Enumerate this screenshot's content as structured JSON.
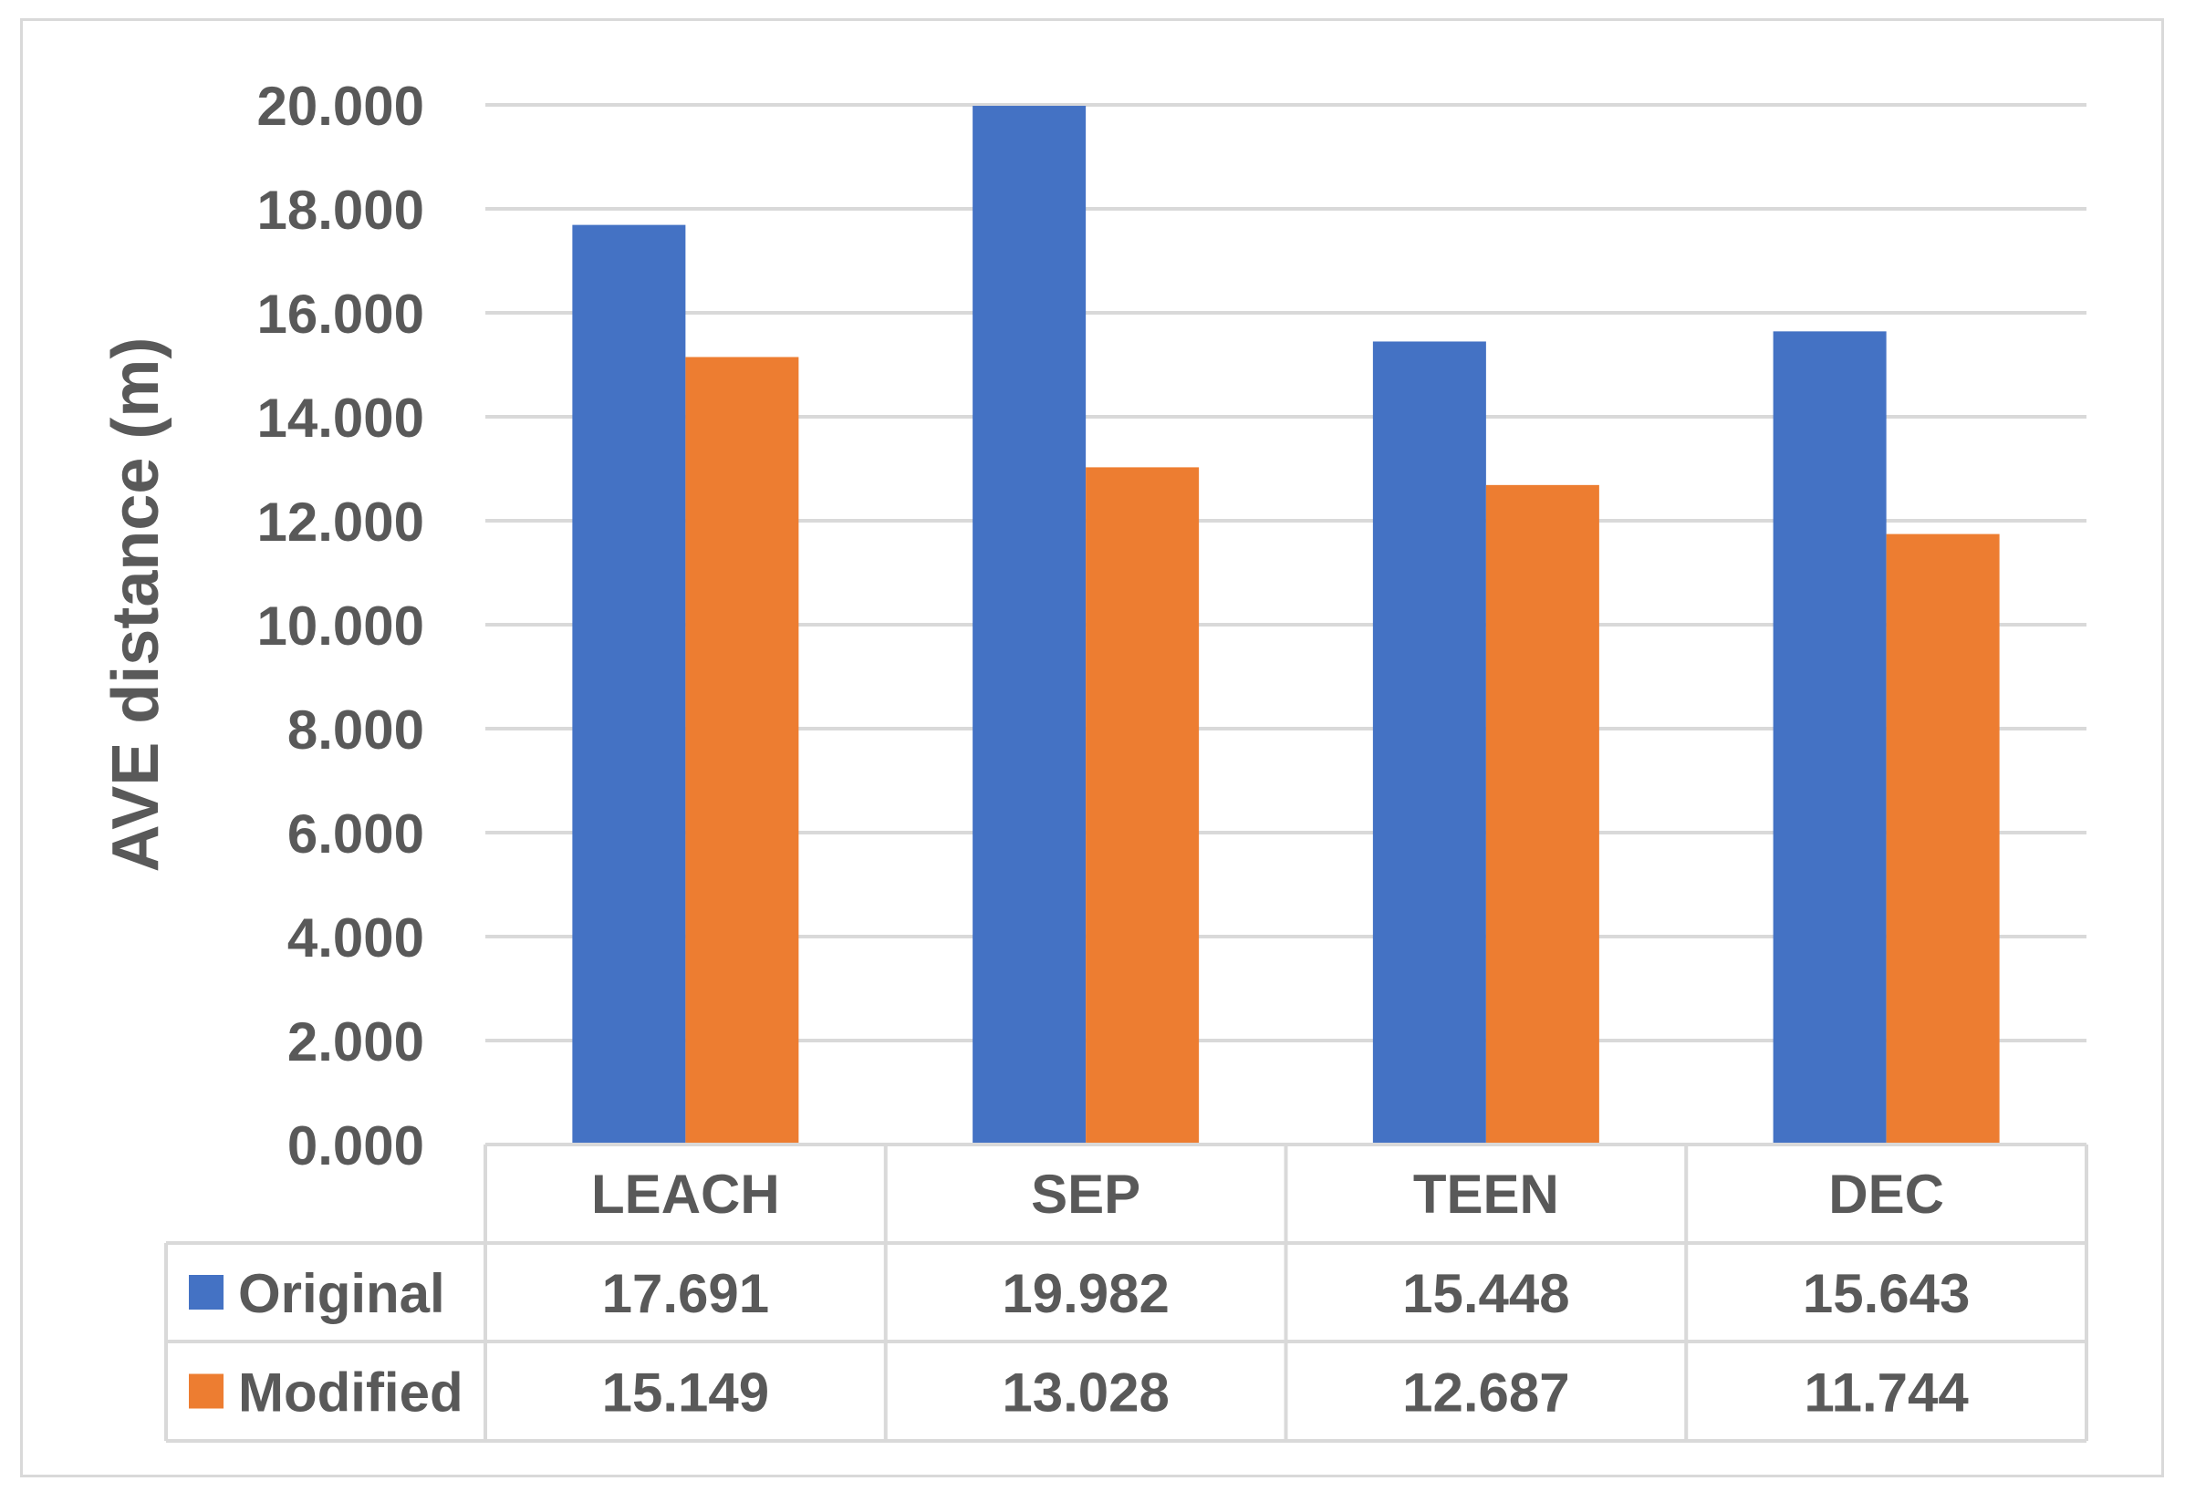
{
  "chart_data": {
    "type": "bar",
    "title": "",
    "xlabel": "",
    "ylabel": "AVE distance (m)",
    "ylim": [
      0,
      20
    ],
    "yticks": [
      "0.000",
      "2.000",
      "4.000",
      "6.000",
      "8.000",
      "10.000",
      "12.000",
      "14.000",
      "16.000",
      "18.000",
      "20.000"
    ],
    "categories": [
      "LEACH",
      "SEP",
      "TEEN",
      "DEC"
    ],
    "grid": true,
    "legend": "data-table",
    "series": [
      {
        "name": "Original",
        "color": "#4472C4",
        "values": [
          17.691,
          19.982,
          15.448,
          15.643
        ],
        "labels": [
          "17.691",
          "19.982",
          "15.448",
          "15.643"
        ]
      },
      {
        "name": "Modified",
        "color": "#ED7D31",
        "values": [
          15.149,
          13.028,
          12.687,
          11.744
        ],
        "labels": [
          "15.149",
          "13.028",
          "12.687",
          "11.744"
        ]
      }
    ]
  }
}
